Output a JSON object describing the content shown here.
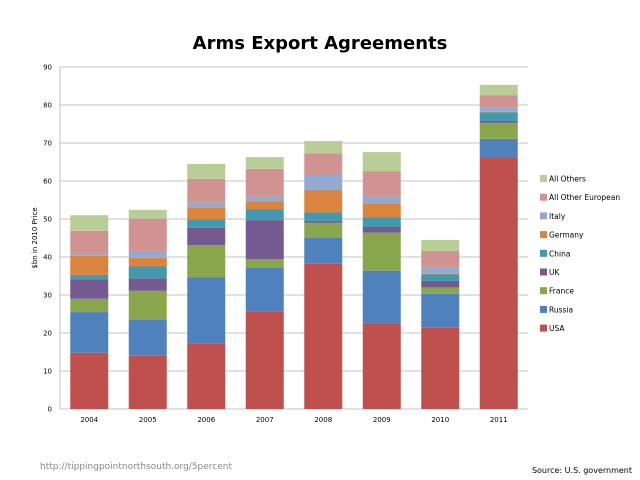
{
  "chart_data": {
    "type": "bar",
    "stacked": true,
    "title": "Arms Export Agreements",
    "xlabel": "",
    "ylabel": "$bn in 2010 Price",
    "ylim": [
      0,
      90
    ],
    "yticks": [
      0,
      10,
      20,
      30,
      40,
      50,
      60,
      70,
      80,
      90
    ],
    "grid": true,
    "legend_position": "right",
    "categories": [
      "2004",
      "2005",
      "2006",
      "2007",
      "2008",
      "2009",
      "2010",
      "2011"
    ],
    "series": [
      {
        "name": "USA",
        "color": "#c0504d",
        "values": [
          14.8,
          14.0,
          17.3,
          25.7,
          38.2,
          22.6,
          21.4,
          66.3
        ]
      },
      {
        "name": "Russia",
        "color": "#4f81bd",
        "values": [
          10.7,
          9.6,
          17.3,
          11.5,
          6.8,
          13.8,
          8.9,
          4.8
        ]
      },
      {
        "name": "France",
        "color": "#8aa64c",
        "values": [
          3.5,
          7.5,
          8.5,
          2.2,
          4.0,
          10.0,
          1.7,
          4.2
        ]
      },
      {
        "name": "UK",
        "color": "#745a8e",
        "values": [
          5.1,
          3.3,
          4.6,
          10.3,
          0.5,
          1.5,
          1.7,
          0.5
        ]
      },
      {
        "name": "China",
        "color": "#4198af",
        "values": [
          1.2,
          3.1,
          2.2,
          2.8,
          2.2,
          2.6,
          1.7,
          2.3
        ]
      },
      {
        "name": "Germany",
        "color": "#db843d",
        "values": [
          5.0,
          2.3,
          3.2,
          2.1,
          5.8,
          3.6,
          0.2,
          0.1
        ]
      },
      {
        "name": "Italy",
        "color": "#93a9cf",
        "values": [
          0.5,
          1.8,
          1.2,
          1.3,
          4.2,
          1.8,
          1.7,
          1.2
        ]
      },
      {
        "name": "All Other European",
        "color": "#d19392",
        "values": [
          6.1,
          8.5,
          6.3,
          7.3,
          5.6,
          6.7,
          4.3,
          3.2
        ]
      },
      {
        "name": "All Others",
        "color": "#b9cd96",
        "values": [
          4.1,
          2.3,
          3.9,
          3.1,
          3.2,
          5.0,
          2.9,
          2.7
        ]
      }
    ]
  },
  "footer": {
    "url": "http://tippingpointnorthsouth.org/5percent",
    "source": "Source: U.S. government"
  }
}
